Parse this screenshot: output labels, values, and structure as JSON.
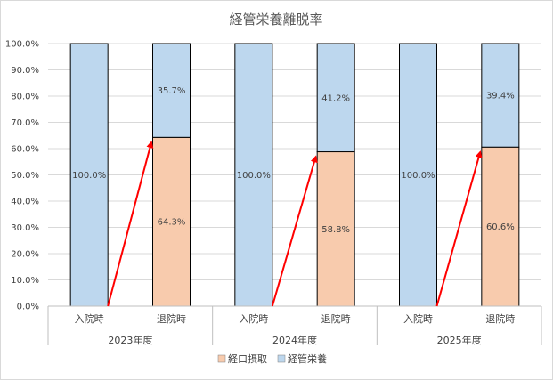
{
  "chart_data": {
    "type": "bar",
    "stacked": true,
    "title": "経管栄養離脱率",
    "xlabel": "",
    "ylabel": "",
    "ylim": [
      0,
      100
    ],
    "y_ticks": [
      "0.0%",
      "10.0%",
      "20.0%",
      "30.0%",
      "40.0%",
      "50.0%",
      "60.0%",
      "70.0%",
      "80.0%",
      "90.0%",
      "100.0%"
    ],
    "grid": true,
    "legend_position": "bottom",
    "groups": [
      {
        "label": "2023年度",
        "bars": [
          {
            "category": "入院時",
            "経口摂取": 0,
            "経管栄養": 100.0,
            "labels": {
              "経管栄養": "100.0%"
            }
          },
          {
            "category": "退院時",
            "経口摂取": 64.3,
            "経管栄養": 35.7,
            "labels": {
              "経口摂取": "64.3%",
              "経管栄養": "35.7%"
            }
          }
        ]
      },
      {
        "label": "2024年度",
        "bars": [
          {
            "category": "入院時",
            "経口摂取": 0,
            "経管栄養": 100.0,
            "labels": {
              "経管栄養": "100.0%"
            }
          },
          {
            "category": "退院時",
            "経口摂取": 58.8,
            "経管栄養": 41.2,
            "labels": {
              "経口摂取": "58.8%",
              "経管栄養": "41.2%"
            }
          }
        ]
      },
      {
        "label": "2025年度",
        "bars": [
          {
            "category": "入院時",
            "経口摂取": 0,
            "経管栄養": 100.0,
            "labels": {
              "経管栄養": "100.0%"
            }
          },
          {
            "category": "退院時",
            "経口摂取": 60.6,
            "経管栄養": 39.4,
            "labels": {
              "経口摂取": "60.6%",
              "経管栄養": "39.4%"
            }
          }
        ]
      }
    ],
    "series": [
      {
        "name": "経口摂取",
        "color": "#f8cbad"
      },
      {
        "name": "経管栄養",
        "color": "#bdd7ee"
      }
    ],
    "annotations": [
      {
        "type": "arrow",
        "color": "#ff0000",
        "from": {
          "group": 0,
          "bar": 0,
          "value": 0
        },
        "to": {
          "group": 0,
          "bar": 1,
          "value": 64.3
        }
      },
      {
        "type": "arrow",
        "color": "#ff0000",
        "from": {
          "group": 1,
          "bar": 0,
          "value": 0
        },
        "to": {
          "group": 1,
          "bar": 1,
          "value": 58.8
        }
      },
      {
        "type": "arrow",
        "color": "#ff0000",
        "from": {
          "group": 2,
          "bar": 0,
          "value": 0
        },
        "to": {
          "group": 2,
          "bar": 1,
          "value": 60.6
        }
      }
    ]
  }
}
